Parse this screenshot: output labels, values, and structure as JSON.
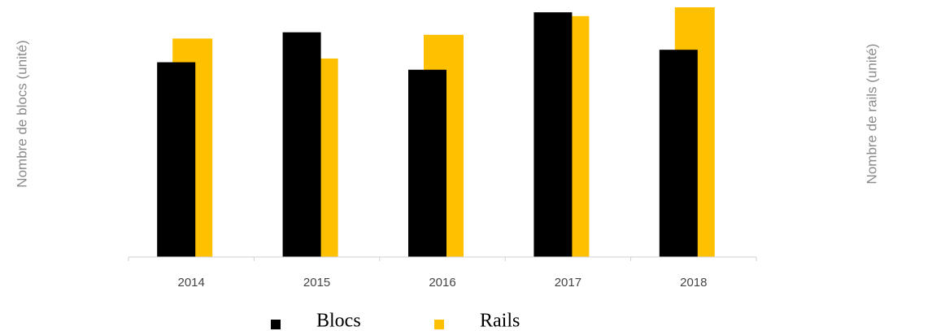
{
  "chart_data": {
    "type": "bar",
    "y_label": "Nombre de blocs (unité)",
    "y2_label": "Nombre de rails (unité)",
    "categories": [
      "2014",
      "2015",
      "2016",
      "2017",
      "2018"
    ],
    "series": [
      {
        "name": "Blocs",
        "color": "#000000",
        "values": [
          78,
          90,
          75,
          98,
          83
        ]
      },
      {
        "name": "Rails",
        "color": "#ffc000",
        "axis": "y2",
        "values": [
          87.5,
          79.5,
          89,
          96.5,
          100
        ]
      }
    ],
    "ylim": [
      0,
      100
    ],
    "y2lim": [
      0,
      100
    ]
  }
}
